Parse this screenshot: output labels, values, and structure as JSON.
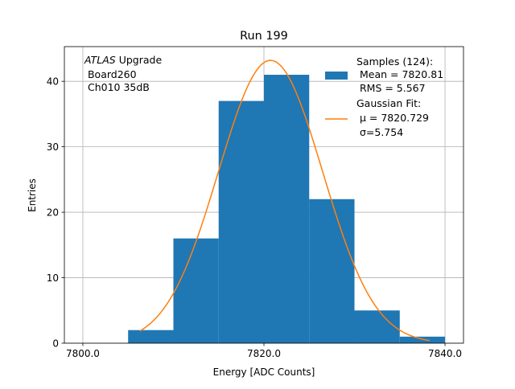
{
  "chart_data": {
    "type": "bar",
    "title": "Run 199",
    "xlabel": "Energy [ADC Counts]",
    "ylabel": "Entries",
    "xlim": [
      7797.96,
      7842.04
    ],
    "ylim": [
      0,
      45.3
    ],
    "xticks": [
      7800,
      7820,
      7840
    ],
    "xtick_labels": [
      "7800.0",
      "7820.0",
      "7840.0"
    ],
    "yticks": [
      0,
      10,
      20,
      30,
      40
    ],
    "ytick_labels": [
      "0",
      "10",
      "20",
      "30",
      "40"
    ],
    "grid": true,
    "bin_edges": [
      7805,
      7810,
      7815,
      7820,
      7825,
      7830,
      7835,
      7840
    ],
    "values": [
      2,
      16,
      37,
      41,
      22,
      5,
      1
    ],
    "fit": {
      "type": "gaussian",
      "mu": 7820.729,
      "sigma": 5.754,
      "amplitude": 43.2,
      "x_range": [
        7806.3,
        7838.3
      ]
    },
    "colors": {
      "histogram": "#1f77b4",
      "fit": "#ff7f0e",
      "grid": "#b0b0b0"
    },
    "annotation": {
      "italic": "ATLAS",
      "line1_rest": " Upgrade",
      "line2": " Board260",
      "line3": " Ch010 35dB"
    },
    "legend": {
      "placement": "top-right",
      "entries": [
        {
          "lines": [
            "Samples (124):",
            " Mean = 7820.81",
            " RMS = 5.567"
          ]
        },
        {
          "lines": [
            "Gaussian Fit:",
            " μ = 7820.729",
            " σ=5.754"
          ]
        }
      ]
    }
  }
}
